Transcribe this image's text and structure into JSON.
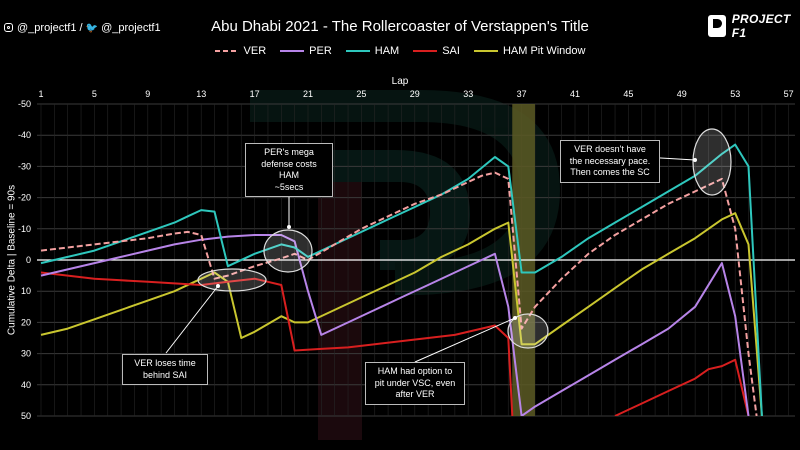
{
  "header": {
    "social_text": "@_projectf1 / ",
    "social_text2": "@_projectf1",
    "brand": "PROJECT F1"
  },
  "chart_data": {
    "type": "line",
    "title": "Abu Dhabi 2021 - The Rollercoaster of Verstappen's Title",
    "xlabel": "Lap",
    "ylabel": "Cumulative Delta | Baseline = 90s",
    "xlim": [
      1,
      58
    ],
    "ylim": [
      -50,
      50
    ],
    "y_inverted": true,
    "x_ticks": [
      1,
      5,
      9,
      13,
      17,
      21,
      25,
      29,
      33,
      37,
      41,
      45,
      49,
      53,
      57
    ],
    "y_ticks": [
      -50,
      -40,
      -30,
      -20,
      -10,
      0,
      10,
      20,
      30,
      40,
      50
    ],
    "grid": true,
    "legend_position": "top",
    "pit_window": {
      "from": 36.3,
      "to": 38.0,
      "color": "#5c5a24"
    },
    "series": [
      {
        "name": "VER",
        "color": "#f4a0a0",
        "dash": true,
        "points": [
          [
            1,
            -3
          ],
          [
            3,
            -4
          ],
          [
            5,
            -5
          ],
          [
            7,
            -6
          ],
          [
            9,
            -7
          ],
          [
            11,
            -8.5
          ],
          [
            12,
            -9
          ],
          [
            13,
            -8
          ],
          [
            14,
            6
          ],
          [
            15,
            5
          ],
          [
            17,
            2
          ],
          [
            19,
            -0.5
          ],
          [
            20,
            -2
          ],
          [
            21,
            0
          ],
          [
            23,
            -5
          ],
          [
            25,
            -10
          ],
          [
            27,
            -14
          ],
          [
            29,
            -18
          ],
          [
            31,
            -21
          ],
          [
            33,
            -25
          ],
          [
            34,
            -27
          ],
          [
            35,
            -28
          ],
          [
            36,
            -26
          ],
          [
            37,
            22
          ],
          [
            38,
            15
          ],
          [
            40,
            6
          ],
          [
            42,
            -2
          ],
          [
            44,
            -8
          ],
          [
            46,
            -13
          ],
          [
            48,
            -18
          ],
          [
            50,
            -22
          ],
          [
            52,
            -26
          ],
          [
            53,
            -10
          ],
          [
            54,
            30
          ],
          [
            54.6,
            50
          ]
        ]
      },
      {
        "name": "PER",
        "color": "#b784e8",
        "dash": false,
        "points": [
          [
            1,
            5
          ],
          [
            3,
            3
          ],
          [
            5,
            1
          ],
          [
            7,
            -1
          ],
          [
            9,
            -3
          ],
          [
            11,
            -5
          ],
          [
            13,
            -6.5
          ],
          [
            15,
            -7.5
          ],
          [
            17,
            -8
          ],
          [
            19,
            -8
          ],
          [
            20,
            -6
          ],
          [
            21,
            10
          ],
          [
            22,
            24
          ],
          [
            24,
            20
          ],
          [
            26,
            16
          ],
          [
            28,
            12
          ],
          [
            30,
            8
          ],
          [
            32,
            4
          ],
          [
            34,
            0
          ],
          [
            35,
            -2
          ],
          [
            36,
            15
          ],
          [
            37,
            50
          ],
          [
            38,
            47
          ],
          [
            40,
            42
          ],
          [
            42,
            37
          ],
          [
            44,
            32
          ],
          [
            46,
            27
          ],
          [
            48,
            22
          ],
          [
            50,
            15
          ],
          [
            52,
            1
          ],
          [
            53,
            18
          ],
          [
            54,
            50
          ]
        ]
      },
      {
        "name": "HAM",
        "color": "#2ec7bd",
        "dash": false,
        "points": [
          [
            1,
            1
          ],
          [
            3,
            -1
          ],
          [
            5,
            -3
          ],
          [
            7,
            -6
          ],
          [
            9,
            -9
          ],
          [
            11,
            -12
          ],
          [
            12,
            -14
          ],
          [
            13,
            -16
          ],
          [
            14,
            -15.5
          ],
          [
            15,
            2
          ],
          [
            17,
            -2
          ],
          [
            19,
            -5
          ],
          [
            20,
            -4
          ],
          [
            21,
            -1
          ],
          [
            23,
            -5
          ],
          [
            25,
            -9
          ],
          [
            27,
            -13
          ],
          [
            29,
            -17
          ],
          [
            31,
            -21
          ],
          [
            33,
            -26
          ],
          [
            35,
            -33
          ],
          [
            36,
            -30
          ],
          [
            37,
            4
          ],
          [
            38,
            4
          ],
          [
            40,
            -1
          ],
          [
            42,
            -7
          ],
          [
            44,
            -12
          ],
          [
            46,
            -17
          ],
          [
            48,
            -22
          ],
          [
            50,
            -27
          ],
          [
            52,
            -34
          ],
          [
            53,
            -37
          ],
          [
            54,
            -30
          ],
          [
            55,
            50
          ]
        ]
      },
      {
        "name": "SAI",
        "color": "#d81f1f",
        "dash": false,
        "points": [
          [
            1,
            4
          ],
          [
            3,
            5
          ],
          [
            5,
            6
          ],
          [
            7,
            6.5
          ],
          [
            9,
            7
          ],
          [
            11,
            7.5
          ],
          [
            13,
            8
          ],
          [
            15,
            7
          ],
          [
            17,
            6
          ],
          [
            18,
            7
          ],
          [
            19,
            8
          ],
          [
            20,
            29
          ],
          [
            22,
            28.5
          ],
          [
            24,
            28
          ],
          [
            26,
            27
          ],
          [
            28,
            26
          ],
          [
            30,
            25
          ],
          [
            32,
            24
          ],
          [
            34,
            22
          ],
          [
            35,
            21
          ],
          [
            36,
            25
          ],
          [
            36.3,
            50
          ],
          [
            null,
            null
          ],
          [
            44,
            50
          ],
          [
            46,
            46
          ],
          [
            48,
            42
          ],
          [
            50,
            38
          ],
          [
            51,
            35
          ],
          [
            52,
            34
          ],
          [
            53,
            32
          ],
          [
            54,
            50
          ]
        ]
      },
      {
        "name": "HAM Pit Window",
        "color": "#c9c62f",
        "dash": false,
        "points": [
          [
            1,
            24
          ],
          [
            3,
            22
          ],
          [
            5,
            19
          ],
          [
            7,
            16
          ],
          [
            9,
            13
          ],
          [
            11,
            10
          ],
          [
            13,
            6
          ],
          [
            14,
            4
          ],
          [
            15,
            7
          ],
          [
            16,
            25
          ],
          [
            17,
            23
          ],
          [
            19,
            18
          ],
          [
            20,
            20
          ],
          [
            21,
            20
          ],
          [
            23,
            16
          ],
          [
            25,
            12
          ],
          [
            27,
            8
          ],
          [
            29,
            4
          ],
          [
            31,
            -1
          ],
          [
            33,
            -5
          ],
          [
            35,
            -10
          ],
          [
            36,
            -12
          ],
          [
            37,
            27
          ],
          [
            38,
            27
          ],
          [
            40,
            21
          ],
          [
            42,
            15
          ],
          [
            44,
            9
          ],
          [
            46,
            3
          ],
          [
            48,
            -2
          ],
          [
            50,
            -7
          ],
          [
            52,
            -13
          ],
          [
            53,
            -15
          ],
          [
            54,
            -5
          ],
          [
            55,
            50
          ]
        ]
      }
    ],
    "annotations": [
      {
        "id": "per-defense",
        "lines": [
          "PER's mega",
          "defense costs HAM",
          "~5secs"
        ]
      },
      {
        "id": "ver-sai",
        "lines": [
          "VER loses time",
          "behind SAI"
        ]
      },
      {
        "id": "ham-vsc",
        "lines": [
          "HAM had option to",
          "pit under VSC, even",
          "after VER"
        ]
      },
      {
        "id": "ver-pace",
        "lines": [
          "VER doesn't have",
          "the necessary pace.",
          "Then comes the SC"
        ]
      }
    ]
  }
}
